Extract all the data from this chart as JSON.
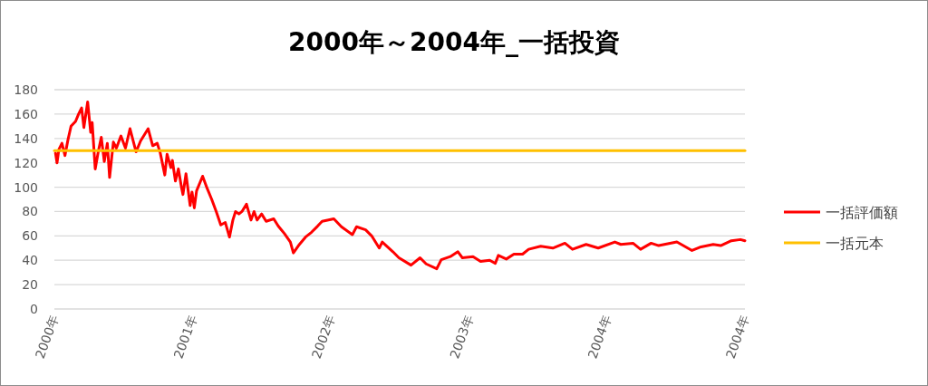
{
  "chart_data": {
    "type": "line",
    "title": "2000年～2004年_一括投資",
    "xlim": [
      "2000-01-01",
      "2004-12-31"
    ],
    "xticks": [
      {
        "value": "2000-01-01",
        "label": "2000年"
      },
      {
        "value": "2001-01-01",
        "label": "2001年"
      },
      {
        "value": "2002-01-01",
        "label": "2002年"
      },
      {
        "value": "2003-01-01",
        "label": "2003年"
      },
      {
        "value": "2004-01-01",
        "label": "2004年"
      },
      {
        "value": "2004-12-31",
        "label": "2004年"
      }
    ],
    "ylim": [
      0,
      180
    ],
    "yticks": [
      0,
      20,
      40,
      60,
      80,
      100,
      120,
      140,
      160,
      180
    ],
    "grid": "y",
    "legend": "right",
    "series": [
      {
        "name": "一括評価額",
        "color": "#ff0000",
        "x": [
          "2000-01-04",
          "2000-01-08",
          "2000-01-13",
          "2000-01-21",
          "2000-01-29",
          "2000-02-06",
          "2000-02-14",
          "2000-02-26",
          "2000-03-05",
          "2000-03-13",
          "2000-03-19",
          "2000-03-29",
          "2000-04-06",
          "2000-04-10",
          "2000-04-18",
          "2000-04-26",
          "2000-05-04",
          "2000-05-12",
          "2000-05-20",
          "2000-05-26",
          "2000-06-05",
          "2000-06-13",
          "2000-06-25",
          "2000-07-07",
          "2000-07-19",
          "2000-08-04",
          "2000-08-16",
          "2000-09-05",
          "2000-09-17",
          "2000-09-29",
          "2000-10-07",
          "2000-10-19",
          "2000-10-25",
          "2000-11-04",
          "2000-11-08",
          "2000-11-16",
          "2000-11-24",
          "2000-12-02",
          "2000-12-06",
          "2000-12-14",
          "2000-12-25",
          "2000-12-30",
          "2001-01-05",
          "2001-01-11",
          "2001-01-27",
          "2001-02-08",
          "2001-02-20",
          "2001-03-04",
          "2001-03-16",
          "2001-03-28",
          "2001-04-08",
          "2001-04-17",
          "2001-04-24",
          "2001-05-03",
          "2001-05-11",
          "2001-05-23",
          "2001-06-04",
          "2001-06-12",
          "2001-06-20",
          "2001-07-02",
          "2001-07-14",
          "2001-08-03",
          "2001-08-15",
          "2001-08-31",
          "2001-09-16",
          "2001-09-24",
          "2001-10-10",
          "2001-10-26",
          "2001-11-11",
          "2001-11-27",
          "2001-12-09",
          "2002-01-09",
          "2002-01-29",
          "2002-02-27",
          "2002-03-10",
          "2002-04-03",
          "2002-04-19",
          "2002-05-09",
          "2002-05-17",
          "2002-06-14",
          "2002-06-30",
          "2002-08-01",
          "2002-08-25",
          "2002-09-10",
          "2002-10-08",
          "2002-10-20",
          "2002-11-13",
          "2002-12-03",
          "2002-12-15",
          "2003-01-12",
          "2003-02-01",
          "2003-02-25",
          "2003-03-12",
          "2003-03-20",
          "2003-04-10",
          "2003-04-30",
          "2003-05-23",
          "2003-06-08",
          "2003-07-10",
          "2003-08-11",
          "2003-09-12",
          "2003-10-02",
          "2003-11-07",
          "2003-12-09",
          "2004-01-22",
          "2004-02-07",
          "2004-03-10",
          "2004-03-30",
          "2004-04-27",
          "2004-05-17",
          "2004-07-04",
          "2004-08-13",
          "2004-09-06",
          "2004-10-08",
          "2004-10-28",
          "2004-11-25",
          "2004-12-19",
          "2004-12-31"
        ],
        "values": [
          128,
          120,
          131,
          136,
          126,
          139,
          150,
          154,
          160,
          165,
          149,
          170,
          145,
          153,
          115,
          129,
          141,
          121,
          136,
          108,
          137,
          132,
          142,
          132,
          148,
          129,
          138,
          148,
          134,
          136,
          128,
          110,
          127,
          116,
          122,
          105,
          115,
          100,
          94,
          111,
          85,
          96,
          83,
          97,
          109,
          99,
          90,
          80,
          69,
          71,
          59,
          73,
          80,
          78,
          80,
          86,
          73,
          80,
          73,
          78,
          72,
          74,
          68,
          62,
          55,
          46,
          53,
          59,
          63,
          68,
          72,
          74,
          67.5,
          61,
          67.5,
          65,
          60,
          50,
          55,
          47,
          42,
          36,
          42,
          37,
          33,
          40.5,
          43,
          47,
          42,
          43,
          39,
          40,
          37.5,
          44,
          41,
          45,
          45,
          49,
          51.5,
          50,
          54,
          49,
          53,
          50,
          55,
          53,
          54,
          49,
          54,
          52,
          55,
          48,
          51,
          53,
          52,
          56,
          57,
          56
        ]
      },
      {
        "name": "一括元本",
        "color": "#ffc000",
        "x": [
          "2000-01-01",
          "2004-12-31"
        ],
        "values": [
          130,
          130
        ]
      }
    ]
  }
}
